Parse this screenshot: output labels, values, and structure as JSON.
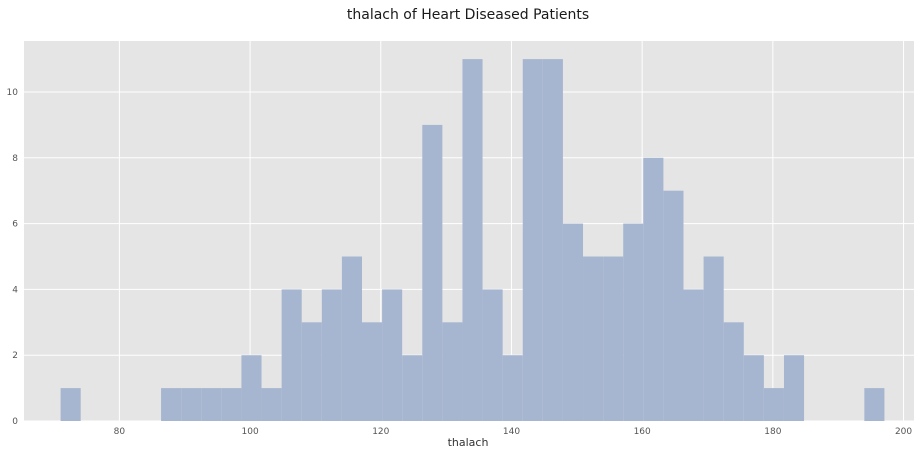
{
  "chart_data": {
    "type": "bar",
    "title": "thalach of Heart Diseased Patients",
    "xlabel": "thalach",
    "ylabel": "",
    "xlim": [
      65.4,
      201.6
    ],
    "ylim": [
      0,
      11.55
    ],
    "xticks": [
      80,
      100,
      120,
      140,
      160,
      180,
      200
    ],
    "xtick_labels": [
      "80",
      "100",
      "120",
      "140",
      "160",
      "180",
      "200"
    ],
    "yticks": [
      0,
      2,
      4,
      6,
      8,
      10
    ],
    "ytick_labels": [
      "0",
      "2",
      "4",
      "6",
      "8",
      "10"
    ],
    "grid": true,
    "bin_width": 3.075,
    "bin_edges_start": 71,
    "values": [
      1,
      0,
      0,
      0,
      0,
      1,
      1,
      1,
      1,
      2,
      1,
      4,
      3,
      4,
      5,
      3,
      4,
      2,
      9,
      3,
      11,
      4,
      2,
      11,
      11,
      6,
      5,
      5,
      6,
      8,
      7,
      4,
      5,
      3,
      2,
      1,
      2,
      0,
      0,
      0,
      1
    ],
    "colors": {
      "background": "#e5e5e5",
      "bar": "#a7b6d0",
      "grid": "#ffffff"
    }
  }
}
